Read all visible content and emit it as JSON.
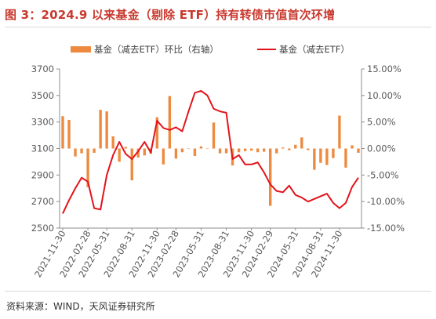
{
  "title": "图 3：2024.9 以来基金（剔除 ETF）持有转债市值首次环增",
  "source": "资料来源：WIND，天风证券研究所",
  "colors": {
    "title": "#c8392e",
    "bar": "#ed8a3f",
    "line": "#e3131b",
    "axis": "#595959"
  },
  "chart_data": {
    "type": "bar+line",
    "x_tick_labels": [
      "2021-11-30",
      "2022-02-28",
      "2022-05-31",
      "2022-08-31",
      "2022-11-30",
      "2023-02-28",
      "2023-05-31",
      "2023-08-31",
      "2023-11-30",
      "2024-02-29",
      "2024-05-31",
      "2024-08-31",
      "2024-11-30"
    ],
    "left_axis": {
      "ylim": [
        2500,
        3700
      ],
      "ticks": [
        "2500",
        "2700",
        "2900",
        "3100",
        "3300",
        "3500",
        "3700"
      ]
    },
    "right_axis": {
      "ylim": [
        -15,
        15
      ],
      "ticks": [
        "-15.00%",
        "-10.00%",
        "-5.00%",
        "0.00%",
        "5.00%",
        "10.00%",
        "15.00%"
      ]
    },
    "series": [
      {
        "name": "基金（减去ETF）环比（右轴）",
        "axis": "right",
        "kind": "bar",
        "values": [
          6.1,
          5.4,
          -1.5,
          -0.9,
          -7.3,
          -0.8,
          7.3,
          7.0,
          2.3,
          -2.5,
          0.3,
          -6.0,
          -1.7,
          -1.3,
          -1.0,
          5.9,
          -3.0,
          9.9,
          -1.9,
          -0.7,
          0.0,
          -1.4,
          0.4,
          0.0,
          4.9,
          -0.9,
          -0.9,
          -3.2,
          -0.7,
          -0.5,
          -0.4,
          -0.7,
          -0.6,
          -10.8,
          -0.9,
          0.2,
          -0.3,
          0.7,
          2.1,
          -0.3,
          -4.0,
          -2.7,
          -3.1,
          -1.8,
          6.2,
          -3.6,
          0.6,
          -0.8
        ]
      },
      {
        "name": "基金（减去ETF）",
        "axis": "left",
        "kind": "line",
        "values": [
          2610,
          2710,
          2800,
          2880,
          2850,
          2650,
          2640,
          2900,
          3050,
          3150,
          3060,
          3020,
          3080,
          3150,
          3070,
          3310,
          3255,
          3240,
          3260,
          3230,
          3380,
          3520,
          3535,
          3500,
          3400,
          3380,
          3370,
          3020,
          3050,
          2980,
          2980,
          2995,
          2920,
          2830,
          2780,
          2770,
          2820,
          2750,
          2730,
          2700,
          2720,
          2740,
          2760,
          2690,
          2650,
          2690,
          2810,
          2880
        ]
      }
    ]
  }
}
